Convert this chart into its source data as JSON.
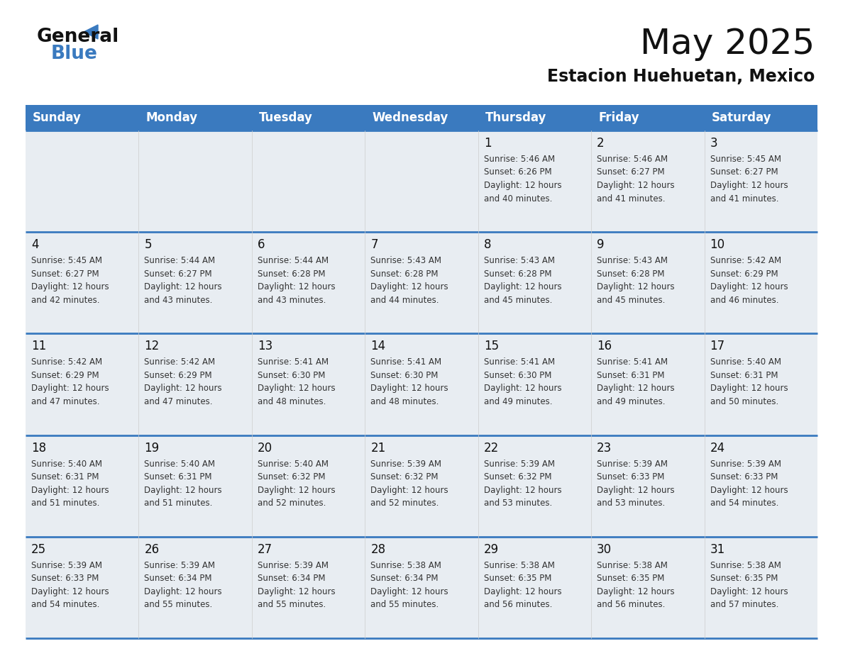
{
  "title": "May 2025",
  "subtitle": "Estacion Huehuetan, Mexico",
  "days_of_week": [
    "Sunday",
    "Monday",
    "Tuesday",
    "Wednesday",
    "Thursday",
    "Friday",
    "Saturday"
  ],
  "header_bg_color": "#3a7abf",
  "header_text_color": "#ffffff",
  "cell_bg_color_light": "#e8edf2",
  "cell_bg_color_white": "#ffffff",
  "day_num_bg_light": "#e8edf2",
  "day_num_bg_white": "#ffffff",
  "separator_color": "#3a7abf",
  "text_color": "#222222",
  "logo_color_blue": "#3a7abf",
  "logo_color_black": "#111111",
  "calendar_data": [
    [
      {
        "day": "",
        "sunrise": "",
        "sunset": "",
        "daylight": ""
      },
      {
        "day": "",
        "sunrise": "",
        "sunset": "",
        "daylight": ""
      },
      {
        "day": "",
        "sunrise": "",
        "sunset": "",
        "daylight": ""
      },
      {
        "day": "",
        "sunrise": "",
        "sunset": "",
        "daylight": ""
      },
      {
        "day": "1",
        "sunrise": "5:46 AM",
        "sunset": "6:26 PM",
        "daylight": "12 hours and 40 minutes."
      },
      {
        "day": "2",
        "sunrise": "5:46 AM",
        "sunset": "6:27 PM",
        "daylight": "12 hours and 41 minutes."
      },
      {
        "day": "3",
        "sunrise": "5:45 AM",
        "sunset": "6:27 PM",
        "daylight": "12 hours and 41 minutes."
      }
    ],
    [
      {
        "day": "4",
        "sunrise": "5:45 AM",
        "sunset": "6:27 PM",
        "daylight": "12 hours and 42 minutes."
      },
      {
        "day": "5",
        "sunrise": "5:44 AM",
        "sunset": "6:27 PM",
        "daylight": "12 hours and 43 minutes."
      },
      {
        "day": "6",
        "sunrise": "5:44 AM",
        "sunset": "6:28 PM",
        "daylight": "12 hours and 43 minutes."
      },
      {
        "day": "7",
        "sunrise": "5:43 AM",
        "sunset": "6:28 PM",
        "daylight": "12 hours and 44 minutes."
      },
      {
        "day": "8",
        "sunrise": "5:43 AM",
        "sunset": "6:28 PM",
        "daylight": "12 hours and 45 minutes."
      },
      {
        "day": "9",
        "sunrise": "5:43 AM",
        "sunset": "6:28 PM",
        "daylight": "12 hours and 45 minutes."
      },
      {
        "day": "10",
        "sunrise": "5:42 AM",
        "sunset": "6:29 PM",
        "daylight": "12 hours and 46 minutes."
      }
    ],
    [
      {
        "day": "11",
        "sunrise": "5:42 AM",
        "sunset": "6:29 PM",
        "daylight": "12 hours and 47 minutes."
      },
      {
        "day": "12",
        "sunrise": "5:42 AM",
        "sunset": "6:29 PM",
        "daylight": "12 hours and 47 minutes."
      },
      {
        "day": "13",
        "sunrise": "5:41 AM",
        "sunset": "6:30 PM",
        "daylight": "12 hours and 48 minutes."
      },
      {
        "day": "14",
        "sunrise": "5:41 AM",
        "sunset": "6:30 PM",
        "daylight": "12 hours and 48 minutes."
      },
      {
        "day": "15",
        "sunrise": "5:41 AM",
        "sunset": "6:30 PM",
        "daylight": "12 hours and 49 minutes."
      },
      {
        "day": "16",
        "sunrise": "5:41 AM",
        "sunset": "6:31 PM",
        "daylight": "12 hours and 49 minutes."
      },
      {
        "day": "17",
        "sunrise": "5:40 AM",
        "sunset": "6:31 PM",
        "daylight": "12 hours and 50 minutes."
      }
    ],
    [
      {
        "day": "18",
        "sunrise": "5:40 AM",
        "sunset": "6:31 PM",
        "daylight": "12 hours and 51 minutes."
      },
      {
        "day": "19",
        "sunrise": "5:40 AM",
        "sunset": "6:31 PM",
        "daylight": "12 hours and 51 minutes."
      },
      {
        "day": "20",
        "sunrise": "5:40 AM",
        "sunset": "6:32 PM",
        "daylight": "12 hours and 52 minutes."
      },
      {
        "day": "21",
        "sunrise": "5:39 AM",
        "sunset": "6:32 PM",
        "daylight": "12 hours and 52 minutes."
      },
      {
        "day": "22",
        "sunrise": "5:39 AM",
        "sunset": "6:32 PM",
        "daylight": "12 hours and 53 minutes."
      },
      {
        "day": "23",
        "sunrise": "5:39 AM",
        "sunset": "6:33 PM",
        "daylight": "12 hours and 53 minutes."
      },
      {
        "day": "24",
        "sunrise": "5:39 AM",
        "sunset": "6:33 PM",
        "daylight": "12 hours and 54 minutes."
      }
    ],
    [
      {
        "day": "25",
        "sunrise": "5:39 AM",
        "sunset": "6:33 PM",
        "daylight": "12 hours and 54 minutes."
      },
      {
        "day": "26",
        "sunrise": "5:39 AM",
        "sunset": "6:34 PM",
        "daylight": "12 hours and 55 minutes."
      },
      {
        "day": "27",
        "sunrise": "5:39 AM",
        "sunset": "6:34 PM",
        "daylight": "12 hours and 55 minutes."
      },
      {
        "day": "28",
        "sunrise": "5:38 AM",
        "sunset": "6:34 PM",
        "daylight": "12 hours and 55 minutes."
      },
      {
        "day": "29",
        "sunrise": "5:38 AM",
        "sunset": "6:35 PM",
        "daylight": "12 hours and 56 minutes."
      },
      {
        "day": "30",
        "sunrise": "5:38 AM",
        "sunset": "6:35 PM",
        "daylight": "12 hours and 56 minutes."
      },
      {
        "day": "31",
        "sunrise": "5:38 AM",
        "sunset": "6:35 PM",
        "daylight": "12 hours and 57 minutes."
      }
    ]
  ],
  "figsize": [
    11.88,
    9.18
  ],
  "dpi": 100
}
